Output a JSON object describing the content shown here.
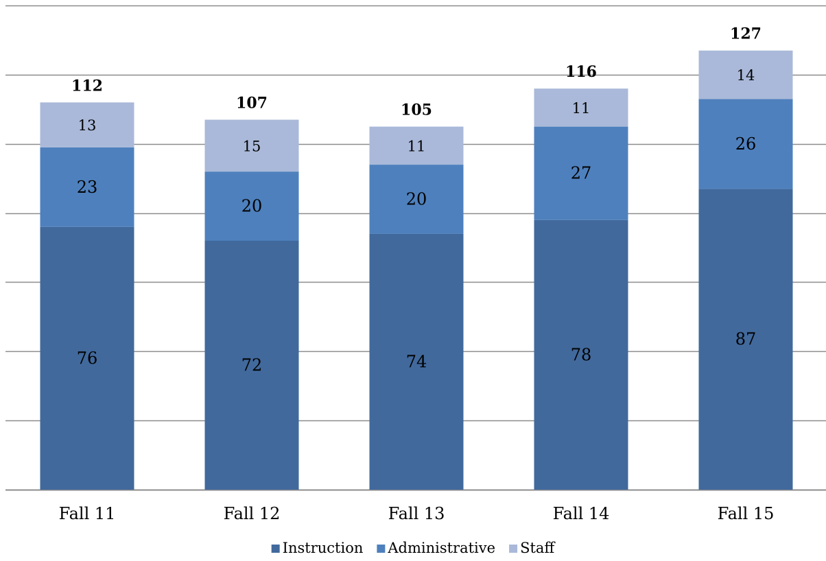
{
  "chart_data": {
    "type": "bar",
    "stacked": true,
    "categories": [
      "Fall 11",
      "Fall 12",
      "Fall 13",
      "Fall 14",
      "Fall 15"
    ],
    "series": [
      {
        "name": "Instruction",
        "values": [
          76,
          72,
          74,
          78,
          87
        ],
        "color": "#41699c"
      },
      {
        "name": "Administrative",
        "values": [
          23,
          20,
          20,
          27,
          26
        ],
        "color": "#4e80bd"
      },
      {
        "name": "Staff",
        "values": [
          13,
          15,
          11,
          11,
          14
        ],
        "color": "#aab9d9"
      }
    ],
    "totals": [
      112,
      107,
      105,
      116,
      127
    ],
    "ylim": [
      0,
      140
    ],
    "y_grid_step": 20,
    "grid": true,
    "legend_position": "bottom",
    "title": "",
    "xlabel": "",
    "ylabel": ""
  }
}
